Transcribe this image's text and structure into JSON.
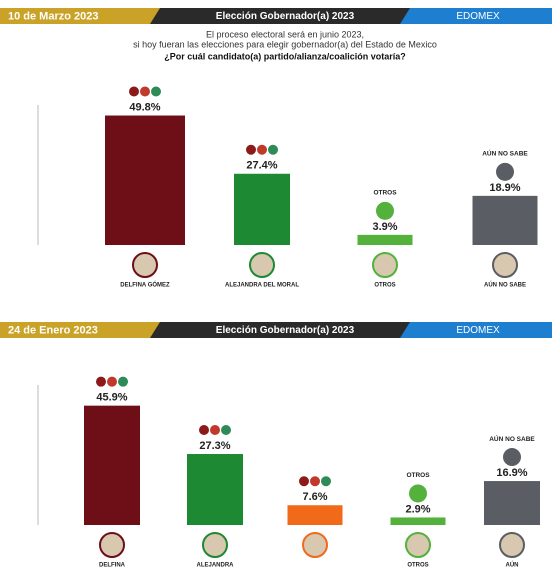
{
  "chart_data": [
    {
      "type": "bar",
      "date": "10 de Marzo 2023",
      "title": "Elección Gobernador(a) 2023",
      "region": "EDOMEX",
      "subtitle": [
        "El proceso electoral será en junio 2023,",
        "si hoy fueran las elecciones para elegir gobernador(a) del Estado de Mexico"
      ],
      "question": "¿Por cuál candidato(a) partido/alianza/coalición votaría?",
      "categories": [
        "DELFINA GÓMEZ",
        "ALEJANDRA DEL MORAL",
        "OTROS",
        "AÚN NO SABE"
      ],
      "top_labels": [
        null,
        null,
        "OTROS",
        "AÚN NO SABE"
      ],
      "values": [
        49.8,
        27.4,
        3.9,
        18.9
      ],
      "value_labels": [
        "49.8%",
        "27.4%",
        "3.9%",
        "18.9%"
      ],
      "colors": [
        "#6e0e16",
        "#1d8a33",
        "#53b13c",
        "#5a5d63"
      ],
      "ylim": [
        0,
        50
      ]
    },
    {
      "type": "bar",
      "date": "24 de Enero 2023",
      "title": "Elección Gobernador(a) 2023",
      "region": "EDOMEX",
      "categories": [
        "DELFINA",
        "ALEJANDRA",
        null,
        "OTROS",
        "AÚN"
      ],
      "top_labels": [
        null,
        null,
        null,
        "OTROS",
        "AÚN NO SABE"
      ],
      "values": [
        45.9,
        27.3,
        7.6,
        2.9,
        16.9
      ],
      "value_labels": [
        "45.9%",
        "27.3%",
        "7.6%",
        "2.9%",
        "16.9%"
      ],
      "colors": [
        "#6e0e16",
        "#1d8a33",
        "#f06a1a",
        "#53b13c",
        "#5a5d63"
      ],
      "ylim": [
        0,
        50
      ]
    }
  ]
}
